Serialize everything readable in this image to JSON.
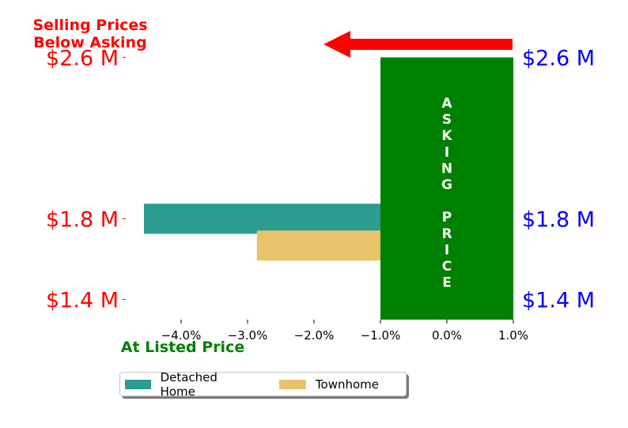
{
  "chart_data": {
    "type": "bar",
    "orientation": "horizontal",
    "title_lines": [
      "Selling Prices",
      "Below Asking"
    ],
    "xlabel": "At Listed Price",
    "xlim": [
      -0.05,
      0.01
    ],
    "x_ticks": [
      -0.04,
      -0.03,
      -0.02,
      -0.01,
      0.0,
      0.01
    ],
    "x_tick_labels": [
      "−4.0%",
      "−3.0%",
      "−2.0%",
      "−1.0%",
      "0.0%",
      "1.0%"
    ],
    "ylim": [
      1.3,
      2.7
    ],
    "y_ticks": [
      1.4,
      1.8,
      2.6
    ],
    "y_tick_labels": [
      "$1.4 M",
      "$1.8 M",
      "$2.6 M"
    ],
    "y_right_tick_labels": [
      "$1.4 M",
      "$1.8 M",
      "$2.6 M"
    ],
    "series": [
      {
        "name": "Detached Home",
        "color": "#2a9d8f",
        "y": 1.8,
        "x_start": -0.0456,
        "x_end": -0.01
      },
      {
        "name": "Townhome",
        "color": "#e9c46a",
        "y": 1.667,
        "x_start": -0.0286,
        "x_end": -0.01
      }
    ],
    "asking_band": {
      "x_start": -0.01,
      "x_end": 0.01,
      "y_start": 1.3,
      "y_end": 2.6,
      "color": "#008000",
      "label_letters": [
        "A",
        "S",
        "K",
        "I",
        "N",
        "G",
        "",
        "P",
        "R",
        "I",
        "C",
        "E"
      ]
    },
    "arrow": {
      "color": "#ff0000",
      "direction": "left"
    },
    "colors": {
      "left_ticks": "#ff0000",
      "right_ticks": "#0000ff",
      "title": "#ff0000",
      "xlabel": "#008000"
    },
    "legend": {
      "placement": "bottom-left",
      "entries": [
        "Detached Home",
        "Townhome"
      ]
    }
  }
}
